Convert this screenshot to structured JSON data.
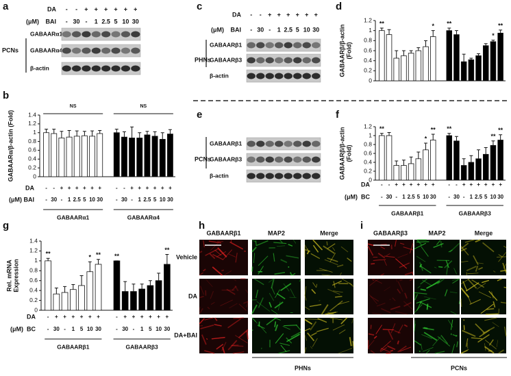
{
  "blots": [
    {
      "panel": "a",
      "cell": "PCNs",
      "conditions": [
        {
          "label": "DA",
          "values": [
            "-",
            "-",
            "+",
            "+",
            "+",
            "+",
            "+",
            "+"
          ]
        },
        {
          "unit": "(μM)",
          "label": "BAI",
          "values": [
            "-",
            "30",
            "-",
            "1",
            "2.5",
            "5",
            "10",
            "30"
          ]
        }
      ],
      "bands": [
        "GABAARα1",
        "GABAARα4",
        "β-actin"
      ]
    },
    {
      "panel": "c",
      "cell": "PHNs",
      "conditions": [
        {
          "label": "DA",
          "values": [
            "-",
            "-",
            "+",
            "+",
            "+",
            "+",
            "+",
            "+"
          ]
        },
        {
          "unit": "(μM)",
          "label": "BAI",
          "values": [
            "-",
            "30",
            "-",
            "1",
            "2.5",
            "5",
            "10",
            "30"
          ]
        }
      ],
      "bands": [
        "GABAARβ1",
        "GABAARβ3",
        "β-actin"
      ]
    },
    {
      "panel": "e",
      "cell": "PCNs",
      "bands": [
        "GABAARβ1",
        "GABAARβ3",
        "β-actin"
      ]
    }
  ],
  "chart_data": [
    {
      "type": "bar",
      "panel": "b",
      "ylabel": [
        "GABAARα/β-actin (Fold)"
      ],
      "ylim": [
        0,
        1.4
      ],
      "yticks": [
        0,
        0.2,
        0.4,
        0.6,
        0.8,
        1,
        1.2,
        1.4
      ],
      "conditions": [
        {
          "label": "DA",
          "values": [
            "-",
            "-",
            "+",
            "+",
            "+",
            "+",
            "+",
            "+"
          ]
        },
        {
          "unit": "(μM)",
          "label": "BAI",
          "values": [
            "-",
            "30",
            "-",
            "1",
            "2.5",
            "5",
            "10",
            "30"
          ]
        }
      ],
      "series": [
        {
          "name": "GABAARα1",
          "color": "#ffffff",
          "note": "NS",
          "values": [
            1,
            0.98,
            0.88,
            0.9,
            0.92,
            0.93,
            0.92,
            0.98
          ],
          "errors": [
            0.08,
            0.1,
            0.15,
            0.15,
            0.12,
            0.1,
            0.12,
            0.07
          ]
        },
        {
          "name": "GABAARα4",
          "color": "#000000",
          "note": "NS",
          "values": [
            1,
            0.9,
            0.88,
            0.88,
            0.95,
            0.92,
            0.85,
            0.97
          ],
          "errors": [
            0.08,
            0.12,
            0.25,
            0.12,
            0.08,
            0.1,
            0.15,
            0.1
          ]
        }
      ]
    },
    {
      "type": "bar",
      "panel": "d",
      "ylabel": [
        "GABAARβ/β-actin",
        "(Fold)"
      ],
      "ylim": [
        0,
        1.2
      ],
      "yticks": [
        0,
        0.2,
        0.4,
        0.6,
        0.8,
        1,
        1.2
      ],
      "series": [
        {
          "color": "#ffffff",
          "values": [
            1,
            0.92,
            0.45,
            0.5,
            0.55,
            0.6,
            0.68,
            0.88
          ],
          "errors": [
            0.05,
            0.1,
            0.15,
            0.1,
            0.05,
            0.06,
            0.12,
            0.12
          ],
          "significance": [
            "**",
            null,
            null,
            null,
            null,
            null,
            null,
            "*"
          ]
        },
        {
          "color": "#000000",
          "values": [
            1,
            0.92,
            0.38,
            0.42,
            0.5,
            0.7,
            0.78,
            0.95
          ],
          "errors": [
            0.05,
            0.08,
            0.15,
            0.03,
            0.04,
            0.04,
            0.03,
            0.06
          ],
          "significance": [
            "**",
            null,
            null,
            null,
            null,
            null,
            "*",
            "**"
          ]
        }
      ]
    },
    {
      "type": "bar",
      "panel": "f",
      "ylabel": [
        "GABAARβ/β-actin",
        "(Fold)"
      ],
      "ylim": [
        0,
        1.2
      ],
      "yticks": [
        0,
        0.2,
        0.4,
        0.6,
        0.8,
        1,
        1.2
      ],
      "conditions": [
        {
          "label": "DA",
          "values": [
            "-",
            "-",
            "+",
            "+",
            "+",
            "+",
            "+",
            "+"
          ]
        },
        {
          "unit": "(μM)",
          "label": "BC",
          "values": [
            "-",
            "30",
            "-",
            "1",
            "2.5",
            "5",
            "10",
            "30"
          ]
        }
      ],
      "series": [
        {
          "name": "GABAARβ1",
          "color": "#ffffff",
          "values": [
            1,
            1,
            0.33,
            0.33,
            0.37,
            0.48,
            0.68,
            0.9
          ],
          "errors": [
            0.05,
            0.07,
            0.1,
            0.12,
            0.15,
            0.15,
            0.15,
            0.13
          ],
          "significance": [
            "**",
            null,
            null,
            null,
            null,
            null,
            "*",
            "**"
          ]
        },
        {
          "name": "GABAARβ3",
          "color": "#000000",
          "values": [
            1,
            0.88,
            0.33,
            0.4,
            0.48,
            0.58,
            0.78,
            0.9
          ],
          "errors": [
            0.05,
            0.1,
            0.15,
            0.15,
            0.2,
            0.15,
            0.1,
            0.12
          ],
          "significance": [
            "**",
            null,
            null,
            null,
            null,
            null,
            "**",
            "**"
          ]
        }
      ]
    },
    {
      "type": "bar",
      "panel": "g",
      "ylabel": [
        "Rel. mRNA",
        "Expression"
      ],
      "ylim": [
        0,
        1.4
      ],
      "yticks": [
        0,
        0.2,
        0.4,
        0.6,
        0.8,
        1,
        1.2,
        1.4
      ],
      "conditions": [
        {
          "label": "DA",
          "values": [
            "-",
            "+",
            "+",
            "+",
            "+",
            "+",
            "+"
          ]
        },
        {
          "unit": "(μM)",
          "label": "BC",
          "values": [
            "-",
            "30",
            "-",
            "1",
            "5",
            "10",
            "30"
          ]
        }
      ],
      "series": [
        {
          "name": "GABAARβ1",
          "color": "#ffffff",
          "values": [
            1,
            0.33,
            0.36,
            0.42,
            0.5,
            0.78,
            0.93
          ],
          "errors": [
            0.05,
            0.12,
            0.12,
            0.1,
            0.2,
            0.2,
            0.1
          ],
          "significance": [
            "**",
            null,
            null,
            null,
            null,
            "*",
            "**"
          ]
        },
        {
          "name": "GABAARβ3",
          "color": "#000000",
          "values": [
            1,
            0.38,
            0.38,
            0.43,
            0.5,
            0.6,
            0.93
          ],
          "errors": [
            0,
            0.2,
            0.15,
            0.1,
            0.1,
            0.15,
            0.2
          ],
          "significance": [
            "**",
            null,
            null,
            null,
            null,
            null,
            "**"
          ]
        }
      ]
    }
  ],
  "micrographs": [
    {
      "panel": "h",
      "channels": [
        "GABAARβ1",
        "MAP2",
        "Merge"
      ],
      "conditions": [
        "Vehicle",
        "DA",
        "DA+BAI"
      ],
      "cell": "PHNs"
    },
    {
      "panel": "i",
      "channels": [
        "GABAARβ3",
        "MAP2",
        "Merge"
      ],
      "cell": "PCNs"
    }
  ]
}
